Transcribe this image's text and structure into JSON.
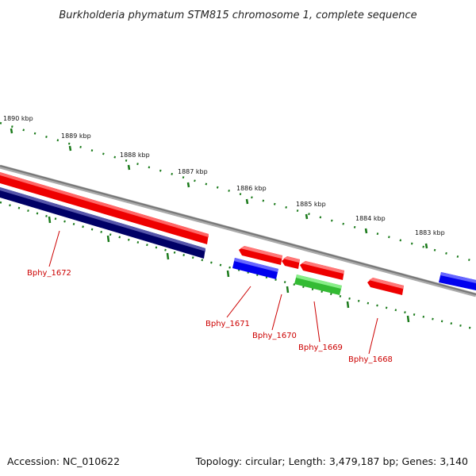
{
  "title": "Burkholderia phymatum STM815 chromosome 1, complete sequence",
  "accession_text": "Accession: NC_010622",
  "topology_text": "Topology: circular; Length: 3,479,187 bp; Genes: 3,140",
  "kbp_labels": [
    "1890 kbp",
    "1889 kbp",
    "1888 kbp",
    "1887 kbp",
    "1886 kbp",
    "1885 kbp",
    "1884 kbp",
    "1883 kbp"
  ],
  "genes": [
    {
      "label": "Bphy_1672",
      "color": "#000066"
    },
    {
      "label": "Bphy_1671",
      "color": "#0000ee"
    },
    {
      "label": "Bphy_1670",
      "color": "#ee0000"
    },
    {
      "label": "Bphy_1669",
      "color": "#33bb33"
    },
    {
      "label": "Bphy_1668",
      "color": "#ee0000"
    }
  ],
  "colors": {
    "backbone": "#888888",
    "tick": "#1a7a1a",
    "label": "#cc0000",
    "forward_gene": "#ee0000",
    "reverse_gene": "#0000ee",
    "rna_gene": "#33bb33",
    "dark_gene": "#000066"
  }
}
